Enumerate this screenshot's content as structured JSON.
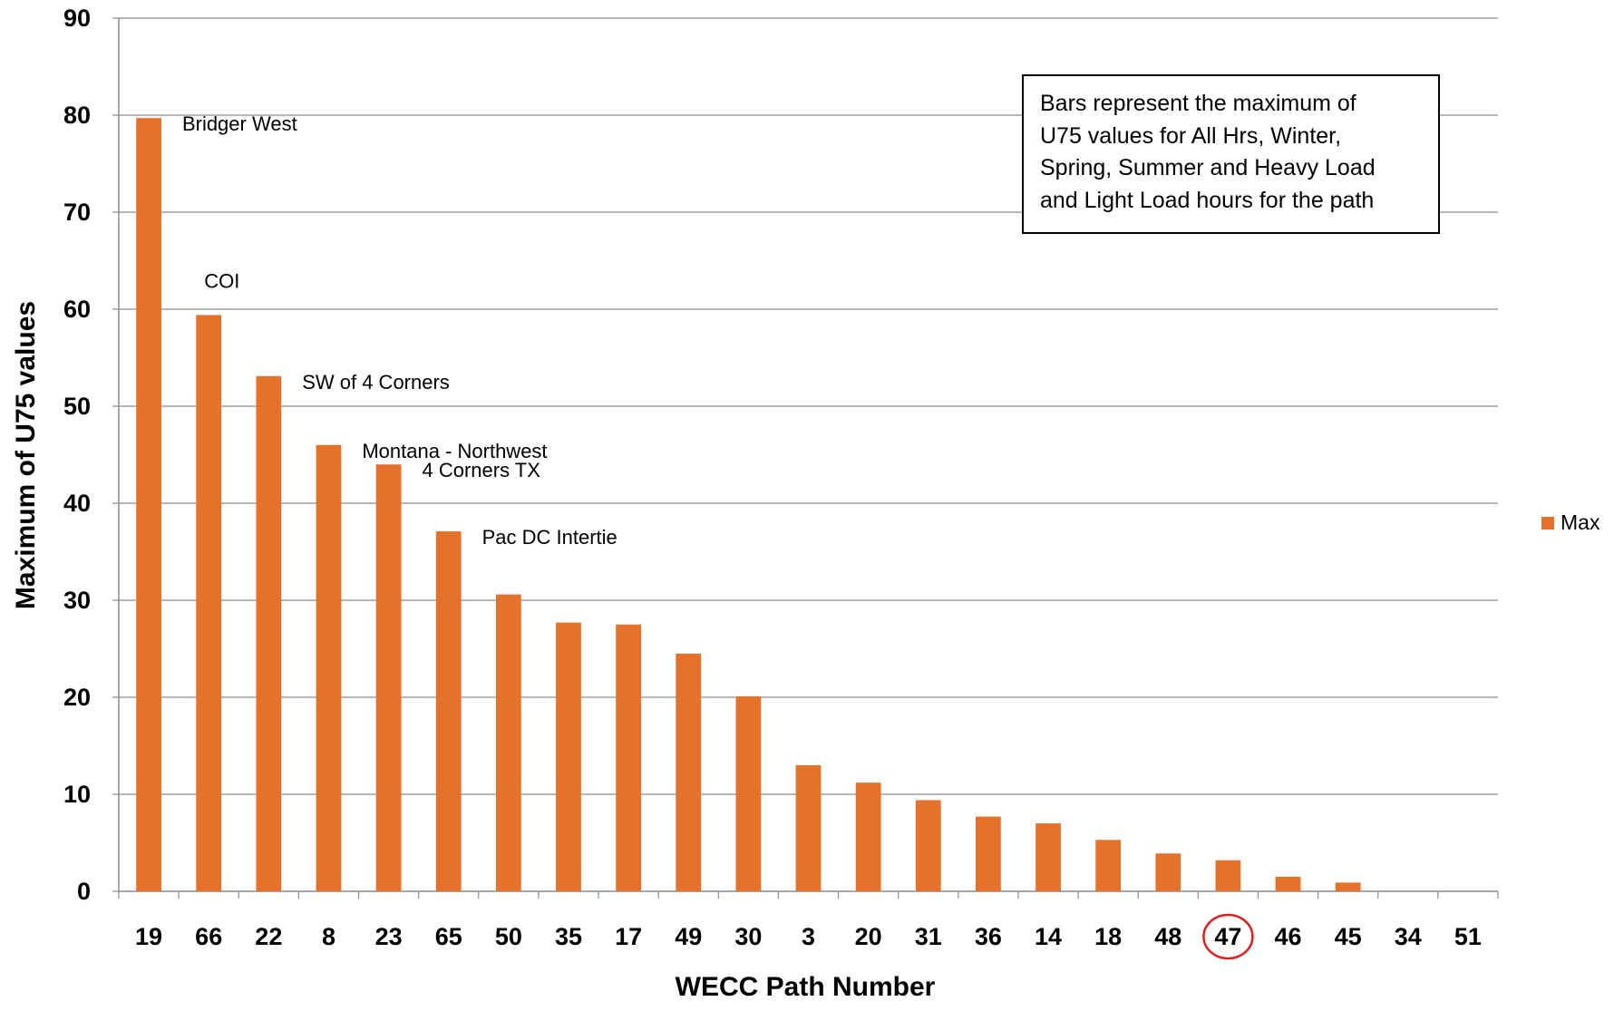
{
  "chart_data": {
    "type": "bar",
    "xlabel": "WECC Path Number",
    "ylabel": "Maximum of U75 values",
    "ylim": [
      0,
      90
    ],
    "yticks": [
      0,
      10,
      20,
      30,
      40,
      50,
      60,
      70,
      80,
      90
    ],
    "grid": true,
    "legend": {
      "position": "right",
      "entries": [
        "Max"
      ]
    },
    "series": [
      {
        "name": "Max",
        "color": "#E5712A",
        "values": [
          79.7,
          59.4,
          53.1,
          46.0,
          44.0,
          37.1,
          30.6,
          27.7,
          27.5,
          24.5,
          20.1,
          13.0,
          11.2,
          9.4,
          7.7,
          7.0,
          5.3,
          3.9,
          3.2,
          1.5,
          0.9,
          0,
          0
        ]
      }
    ],
    "categories": [
      "19",
      "66",
      "22",
      "8",
      "23",
      "65",
      "50",
      "35",
      "17",
      "49",
      "30",
      "3",
      "20",
      "31",
      "36",
      "14",
      "18",
      "48",
      "47",
      "46",
      "45",
      "34",
      "51"
    ],
    "annotations": [
      {
        "category": "19",
        "text": "Bridger West"
      },
      {
        "category": "66",
        "text": "COI"
      },
      {
        "category": "22",
        "text": "SW of 4 Corners"
      },
      {
        "category": "8",
        "text": "Montana - Northwest"
      },
      {
        "category": "23",
        "text": "4 Corners TX"
      },
      {
        "category": "65",
        "text": "Pac DC Intertie"
      }
    ],
    "highlighted_category": "47",
    "highlight_color": "#E02020",
    "note_lines": [
      "Bars represent the maximum of",
      "U75 values for All Hrs, Winter,",
      "Spring, Summer and Heavy Load",
      "and Light Load hours for the path"
    ]
  }
}
